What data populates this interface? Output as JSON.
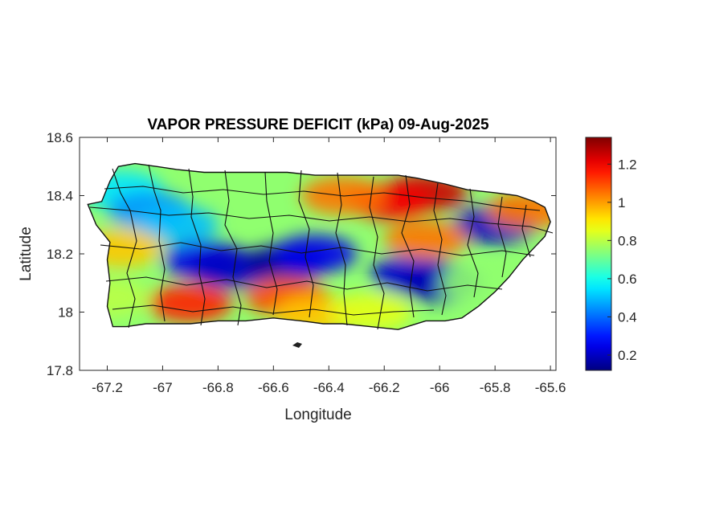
{
  "chart_data": {
    "type": "heatmap",
    "title": "VAPOR PRESSURE DEFICIT (kPa) 09-Aug-2025",
    "xlabel": "Longitude",
    "ylabel": "Latitude",
    "xlim": [
      -67.3,
      -65.58
    ],
    "ylim": [
      17.8,
      18.6
    ],
    "x_ticks": [
      -67.2,
      -67,
      -66.8,
      -66.6,
      -66.4,
      -66.2,
      -66,
      -65.8,
      -65.6
    ],
    "x_tick_labels": [
      "-67.2",
      "-67",
      "-66.8",
      "-66.6",
      "-66.4",
      "-66.2",
      "-66",
      "-65.8",
      "-65.6"
    ],
    "y_ticks": [
      17.8,
      18,
      18.2,
      18.4,
      18.6
    ],
    "y_tick_labels": [
      "17.8",
      "18",
      "18.2",
      "18.4",
      "18.6"
    ],
    "colorbar": {
      "colormap": "jet",
      "range": [
        0.12,
        1.34
      ],
      "ticks": [
        0.2,
        0.4,
        0.6,
        0.8,
        1,
        1.2
      ],
      "tick_labels": [
        "0.2",
        "0.4",
        "0.6",
        "0.8",
        "1",
        "1.2"
      ]
    },
    "field_samples": [
      {
        "lon": -67.15,
        "lat": 18.42,
        "vpd": 0.55
      },
      {
        "lon": -67.05,
        "lat": 18.35,
        "vpd": 0.45
      },
      {
        "lon": -66.95,
        "lat": 18.3,
        "vpd": 0.5
      },
      {
        "lon": -66.85,
        "lat": 18.18,
        "vpd": 0.25
      },
      {
        "lon": -66.75,
        "lat": 18.15,
        "vpd": 0.2
      },
      {
        "lon": -66.55,
        "lat": 18.17,
        "vpd": 0.15
      },
      {
        "lon": -66.45,
        "lat": 18.2,
        "vpd": 0.25
      },
      {
        "lon": -66.1,
        "lat": 18.13,
        "vpd": 0.22
      },
      {
        "lon": -66.0,
        "lat": 18.1,
        "vpd": 0.18
      },
      {
        "lon": -65.8,
        "lat": 18.3,
        "vpd": 0.2
      },
      {
        "lon": -66.05,
        "lat": 18.41,
        "vpd": 1.25
      },
      {
        "lon": -66.18,
        "lat": 18.38,
        "vpd": 1.2
      },
      {
        "lon": -66.35,
        "lat": 18.4,
        "vpd": 1.05
      },
      {
        "lon": -66.9,
        "lat": 18.03,
        "vpd": 1.15
      },
      {
        "lon": -66.55,
        "lat": 18.05,
        "vpd": 1.1
      },
      {
        "lon": -66.45,
        "lat": 17.99,
        "vpd": 0.95
      },
      {
        "lon": -67.15,
        "lat": 18.22,
        "vpd": 0.95
      },
      {
        "lon": -65.68,
        "lat": 18.35,
        "vpd": 1.05
      },
      {
        "lon": -66.05,
        "lat": 18.25,
        "vpd": 1.05
      },
      {
        "lon": -66.25,
        "lat": 18.0,
        "vpd": 0.85
      },
      {
        "lon": -67.2,
        "lat": 18.05,
        "vpd": 0.8
      },
      {
        "lon": -65.85,
        "lat": 18.1,
        "vpd": 0.75
      }
    ]
  }
}
